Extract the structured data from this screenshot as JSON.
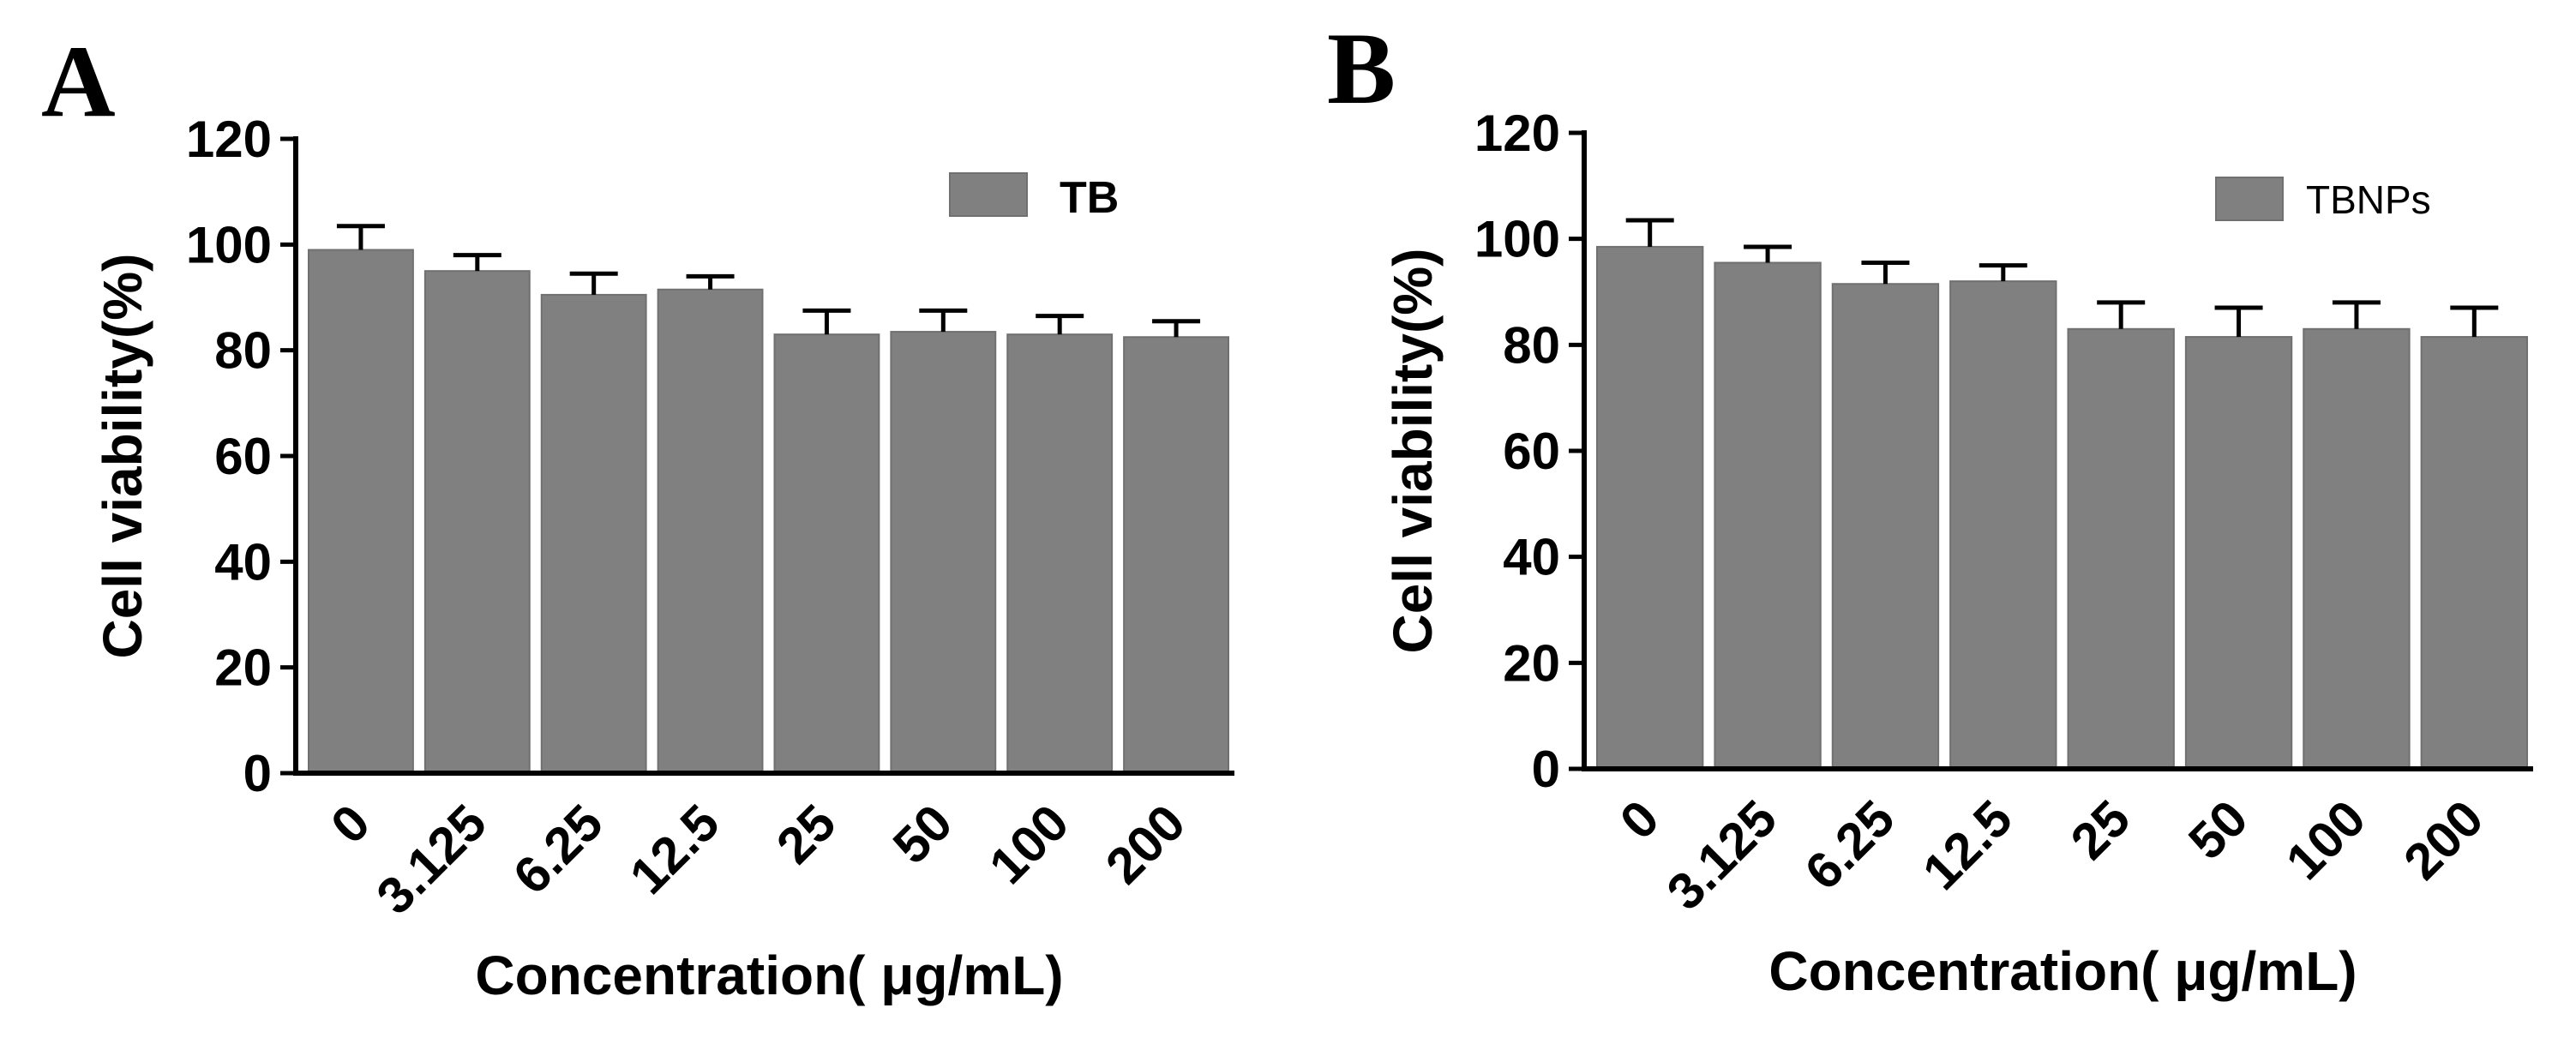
{
  "figure": {
    "panels": [
      "A",
      "B"
    ]
  },
  "colors": {
    "bar_fill": "#808080",
    "bar_outline": "#707070",
    "axis": "#000000",
    "background": "#ffffff"
  },
  "chart_data": [
    {
      "type": "bar",
      "panel_label": "A",
      "legend_label": "TB",
      "legend_position": "top-right",
      "categories": [
        "0",
        "3.125",
        "6.25",
        "12.5",
        "25",
        "50",
        "100",
        "200"
      ],
      "values": [
        99,
        95,
        90.5,
        91.5,
        83,
        83.5,
        83,
        82.5
      ],
      "errors": [
        4.5,
        3,
        4,
        2.5,
        4.5,
        4,
        3.5,
        3
      ],
      "xlabel": "Concentration( μg/mL)",
      "ylabel": "Cell viability(%)",
      "ylim": [
        0,
        120
      ],
      "yticks": [
        "0",
        "20",
        "40",
        "60",
        "80",
        "100",
        "120"
      ],
      "legend_style": "bold"
    },
    {
      "type": "bar",
      "panel_label": "B",
      "legend_label": "TBNPs",
      "legend_position": "top-right",
      "categories": [
        "0",
        "3.125",
        "6.25",
        "12.5",
        "25",
        "50",
        "100",
        "200"
      ],
      "values": [
        98.5,
        95.5,
        91.5,
        92,
        83,
        81.5,
        83,
        81.5
      ],
      "errors": [
        5,
        3,
        4,
        3,
        5,
        5.5,
        5,
        5.5
      ],
      "xlabel": "Concentration( μg/mL)",
      "ylabel": "Cell viability(%)",
      "ylim": [
        0,
        120
      ],
      "yticks": [
        "0",
        "20",
        "40",
        "60",
        "80",
        "100",
        "120"
      ],
      "legend_style": "plain"
    }
  ]
}
